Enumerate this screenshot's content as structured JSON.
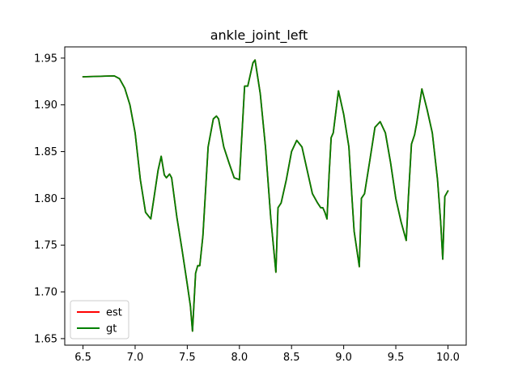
{
  "chart_data": {
    "type": "line",
    "title": "ankle_joint_left",
    "xlabel": "",
    "ylabel": "",
    "xlim": [
      6.325,
      10.175
    ],
    "ylim": [
      1.643,
      1.962
    ],
    "xticks": [
      6.5,
      7.0,
      7.5,
      8.0,
      8.5,
      9.0,
      9.5,
      10.0
    ],
    "xtick_labels": [
      "6.5",
      "7.0",
      "7.5",
      "8.0",
      "8.5",
      "9.0",
      "9.5",
      "10.0"
    ],
    "yticks": [
      1.65,
      1.7,
      1.75,
      1.8,
      1.85,
      1.9,
      1.95
    ],
    "ytick_labels": [
      "1.65",
      "1.70",
      "1.75",
      "1.80",
      "1.85",
      "1.90",
      "1.95"
    ],
    "grid": false,
    "legend": "lower-left",
    "series": [
      {
        "name": "est",
        "color": "#ff0000",
        "x": [
          6.5,
          6.8,
          6.85,
          6.9,
          6.95,
          7.0,
          7.05,
          7.1,
          7.15,
          7.18,
          7.22,
          7.25,
          7.28,
          7.3,
          7.33,
          7.35,
          7.4,
          7.45,
          7.5,
          7.53,
          7.55,
          7.58,
          7.6,
          7.62,
          7.65,
          7.7,
          7.75,
          7.78,
          7.8,
          7.85,
          7.9,
          7.95,
          8.0,
          8.02,
          8.05,
          8.08,
          8.1,
          8.13,
          8.15,
          8.2,
          8.25,
          8.3,
          8.35,
          8.37,
          8.4,
          8.45,
          8.5,
          8.55,
          8.6,
          8.65,
          8.7,
          8.75,
          8.78,
          8.8,
          8.82,
          8.84,
          8.86,
          8.88,
          8.9,
          8.95,
          9.0,
          9.05,
          9.08,
          9.1,
          9.15,
          9.17,
          9.2,
          9.25,
          9.3,
          9.35,
          9.4,
          9.45,
          9.5,
          9.55,
          9.6,
          9.62,
          9.65,
          9.68,
          9.7,
          9.75,
          9.8,
          9.85,
          9.9,
          9.93,
          9.95,
          9.97,
          10.0
        ],
        "y": [
          1.93,
          1.931,
          1.928,
          1.918,
          1.9,
          1.87,
          1.82,
          1.785,
          1.778,
          1.8,
          1.83,
          1.845,
          1.825,
          1.822,
          1.826,
          1.822,
          1.78,
          1.745,
          1.708,
          1.685,
          1.658,
          1.72,
          1.728,
          1.728,
          1.76,
          1.855,
          1.885,
          1.888,
          1.885,
          1.855,
          1.838,
          1.822,
          1.82,
          1.86,
          1.92,
          1.92,
          1.93,
          1.945,
          1.948,
          1.912,
          1.855,
          1.78,
          1.721,
          1.79,
          1.795,
          1.82,
          1.85,
          1.862,
          1.855,
          1.83,
          1.805,
          1.795,
          1.79,
          1.79,
          1.785,
          1.778,
          1.825,
          1.865,
          1.87,
          1.915,
          1.89,
          1.855,
          1.8,
          1.765,
          1.727,
          1.8,
          1.805,
          1.84,
          1.876,
          1.882,
          1.87,
          1.838,
          1.8,
          1.775,
          1.755,
          1.8,
          1.858,
          1.868,
          1.88,
          1.917,
          1.895,
          1.87,
          1.82,
          1.775,
          1.735,
          1.802,
          1.808
        ]
      },
      {
        "name": "gt",
        "color": "#008000",
        "x": [
          6.5,
          6.8,
          6.85,
          6.9,
          6.95,
          7.0,
          7.05,
          7.1,
          7.15,
          7.18,
          7.22,
          7.25,
          7.28,
          7.3,
          7.33,
          7.35,
          7.4,
          7.45,
          7.5,
          7.53,
          7.55,
          7.58,
          7.6,
          7.62,
          7.65,
          7.7,
          7.75,
          7.78,
          7.8,
          7.85,
          7.9,
          7.95,
          8.0,
          8.02,
          8.05,
          8.08,
          8.1,
          8.13,
          8.15,
          8.2,
          8.25,
          8.3,
          8.35,
          8.37,
          8.4,
          8.45,
          8.5,
          8.55,
          8.6,
          8.65,
          8.7,
          8.75,
          8.78,
          8.8,
          8.82,
          8.84,
          8.86,
          8.88,
          8.9,
          8.95,
          9.0,
          9.05,
          9.08,
          9.1,
          9.15,
          9.17,
          9.2,
          9.25,
          9.3,
          9.35,
          9.4,
          9.45,
          9.5,
          9.55,
          9.6,
          9.62,
          9.65,
          9.68,
          9.7,
          9.75,
          9.8,
          9.85,
          9.9,
          9.93,
          9.95,
          9.97,
          10.0
        ],
        "y": [
          1.93,
          1.931,
          1.928,
          1.918,
          1.9,
          1.87,
          1.82,
          1.785,
          1.778,
          1.8,
          1.83,
          1.845,
          1.825,
          1.822,
          1.826,
          1.822,
          1.78,
          1.745,
          1.708,
          1.685,
          1.658,
          1.72,
          1.728,
          1.728,
          1.76,
          1.855,
          1.885,
          1.888,
          1.885,
          1.855,
          1.838,
          1.822,
          1.82,
          1.86,
          1.92,
          1.92,
          1.93,
          1.945,
          1.948,
          1.912,
          1.855,
          1.78,
          1.721,
          1.79,
          1.795,
          1.82,
          1.85,
          1.862,
          1.855,
          1.83,
          1.805,
          1.795,
          1.79,
          1.79,
          1.785,
          1.778,
          1.825,
          1.865,
          1.87,
          1.915,
          1.89,
          1.855,
          1.8,
          1.765,
          1.727,
          1.8,
          1.805,
          1.84,
          1.876,
          1.882,
          1.87,
          1.838,
          1.8,
          1.775,
          1.755,
          1.8,
          1.858,
          1.868,
          1.88,
          1.917,
          1.895,
          1.87,
          1.82,
          1.775,
          1.735,
          1.802,
          1.808
        ]
      }
    ]
  }
}
